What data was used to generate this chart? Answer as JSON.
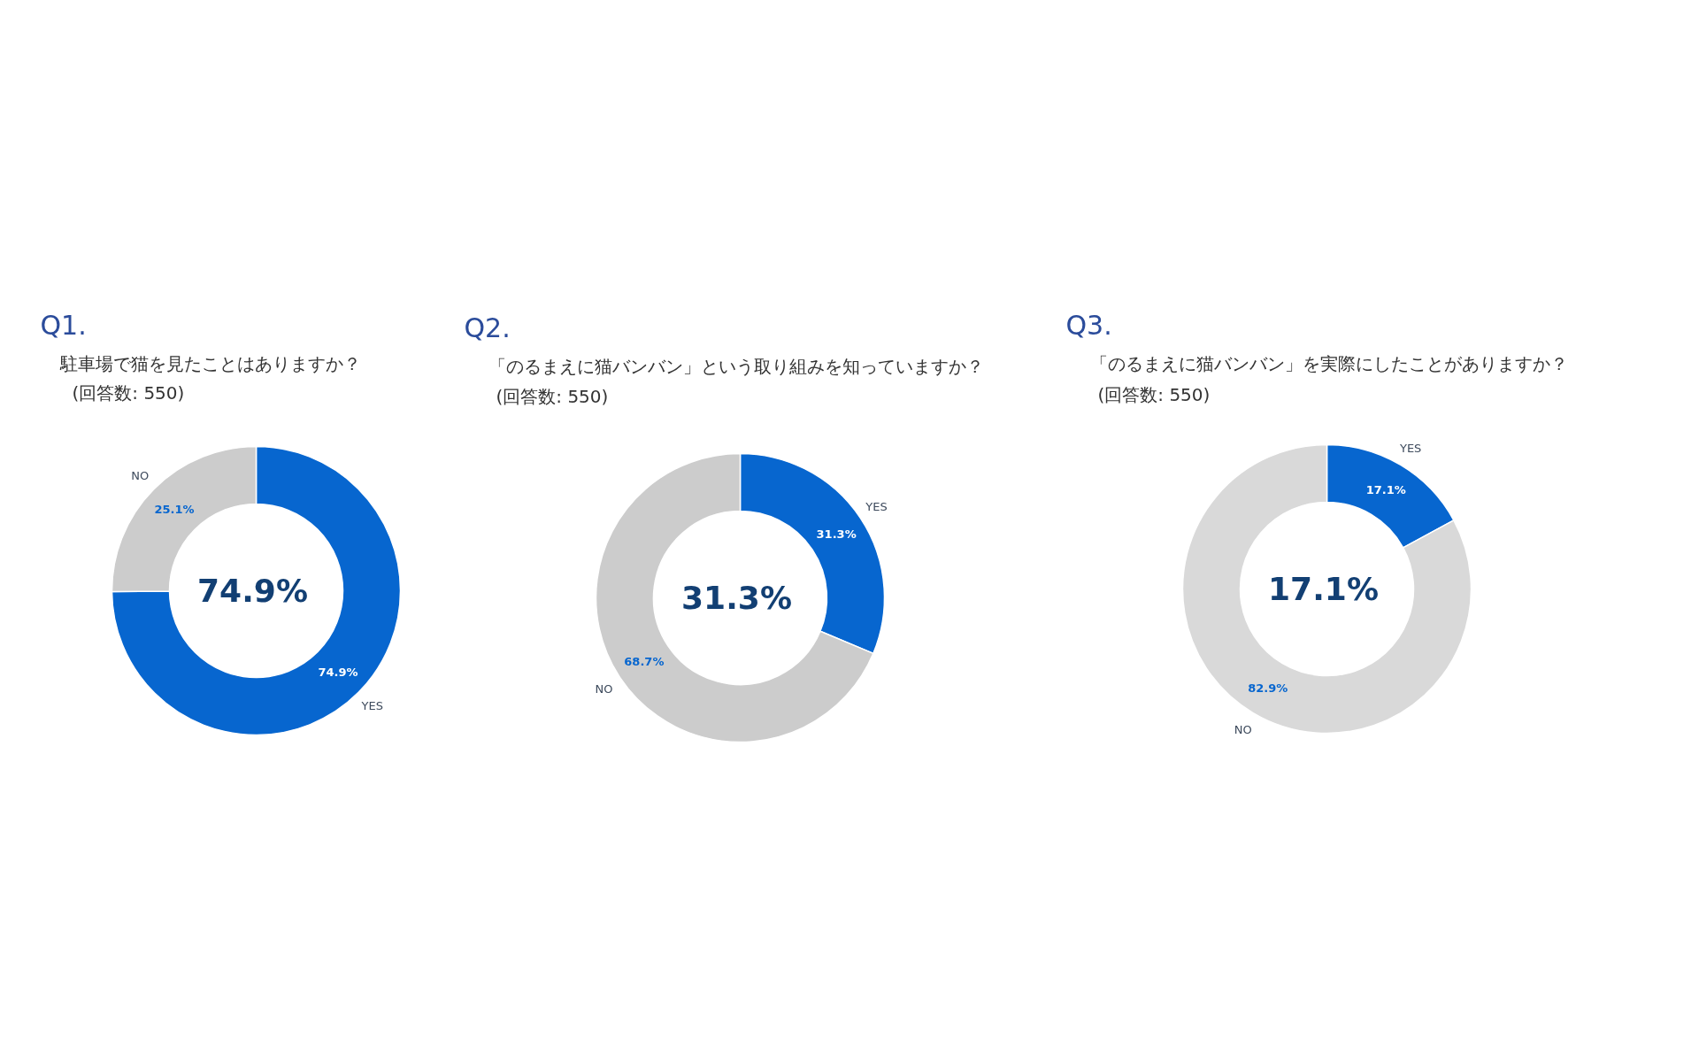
{
  "chart_data": [
    {
      "type": "donut",
      "title": "Q1.",
      "subtitle": "駐車場で猫を見たことはありますか？",
      "categories": [
        "YES",
        "NO"
      ],
      "values": [
        74.9,
        25.1
      ],
      "value_labels": [
        "74.9%",
        "25.1%"
      ],
      "colors": [
        "#0766cf",
        "#cccccc"
      ],
      "annotations": [
        "(回答数: 550)",
        "74.9%"
      ]
    },
    {
      "type": "donut",
      "title": "Q2.",
      "subtitle": "「のるまえに猫バンバン」という取り組みを知っていますか？",
      "categories": [
        "YES",
        "NO"
      ],
      "values": [
        31.3,
        68.7
      ],
      "value_labels": [
        "31.3%",
        "68.7%"
      ],
      "colors": [
        "#0766cf",
        "#cccccc"
      ],
      "annotations": [
        "(回答数: 550)",
        "31.3%"
      ]
    },
    {
      "type": "donut",
      "title": "Q3.",
      "subtitle": "「のるまえに猫バンバン」を実際にしたことがありますか？",
      "categories": [
        "YES",
        "NO"
      ],
      "values": [
        17.1,
        82.9
      ],
      "value_labels": [
        "17.1%",
        "82.9%"
      ],
      "colors": [
        "#0766cf",
        "#d9d9d9"
      ],
      "annotations": [
        "(回答数: 550)",
        "17.1%"
      ]
    }
  ]
}
